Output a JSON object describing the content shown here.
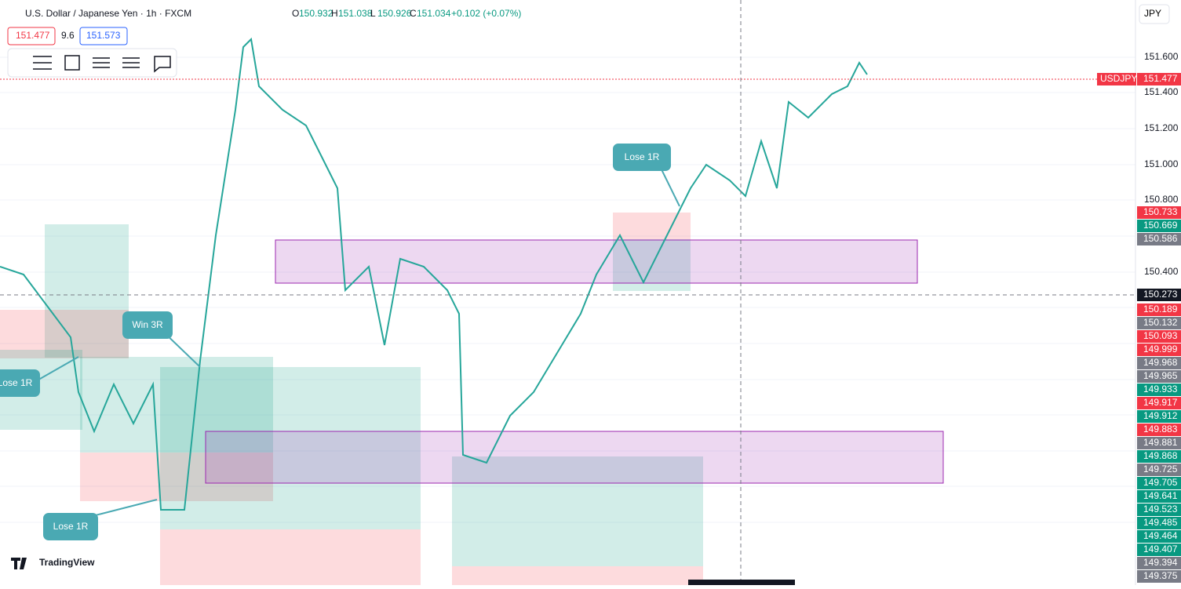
{
  "header": {
    "symbol": "U.S. Dollar / Japanese Yen · 1h · FXCM",
    "ohlc": [
      {
        "label": "O",
        "value": "150.932"
      },
      {
        "label": "H",
        "value": "151.038"
      },
      {
        "label": "L",
        "value": "150.926"
      },
      {
        "label": "C",
        "value": "151.034"
      }
    ],
    "change": "+0.102 (+0.07%)"
  },
  "quote": {
    "sell": "151.477",
    "spread": "9.6",
    "buy": "151.573"
  },
  "currency": "JPY",
  "price_axis": {
    "ticks": [
      "151.600",
      "151.400",
      "151.200",
      "151.000",
      "150.800",
      "150.400"
    ],
    "last": {
      "symbol": "USDJPY",
      "price": "151.477",
      "color": "#f23645"
    },
    "tags": [
      {
        "text": "150.733",
        "color": "#f23645"
      },
      {
        "text": "150.669",
        "color": "#089981"
      },
      {
        "text": "150.586",
        "color": "#787b86"
      },
      {
        "text": "150.273",
        "color": "#131722"
      },
      {
        "text": "150.189",
        "color": "#f23645"
      },
      {
        "text": "150.132",
        "color": "#787b86"
      },
      {
        "text": "150.093",
        "color": "#f23645"
      },
      {
        "text": "149.999",
        "color": "#f23645"
      },
      {
        "text": "149.968",
        "color": "#787b86"
      },
      {
        "text": "149.965",
        "color": "#787b86"
      },
      {
        "text": "149.933",
        "color": "#089981"
      },
      {
        "text": "149.917",
        "color": "#f23645"
      },
      {
        "text": "149.912",
        "color": "#089981"
      },
      {
        "text": "149.883",
        "color": "#f23645"
      },
      {
        "text": "149.881",
        "color": "#787b86"
      },
      {
        "text": "149.868",
        "color": "#089981"
      },
      {
        "text": "149.725",
        "color": "#787b86"
      },
      {
        "text": "149.705",
        "color": "#089981"
      },
      {
        "text": "149.641",
        "color": "#089981"
      },
      {
        "text": "149.523",
        "color": "#089981"
      },
      {
        "text": "149.485",
        "color": "#089981"
      },
      {
        "text": "149.464",
        "color": "#089981"
      },
      {
        "text": "149.407",
        "color": "#089981"
      },
      {
        "text": "149.394",
        "color": "#787b86"
      },
      {
        "text": "149.375",
        "color": "#787b86"
      }
    ]
  },
  "annotations": [
    "Win 3R",
    "Lose 1R",
    "Lose 1R",
    "Lose 1R"
  ],
  "logo": "TradingView"
}
